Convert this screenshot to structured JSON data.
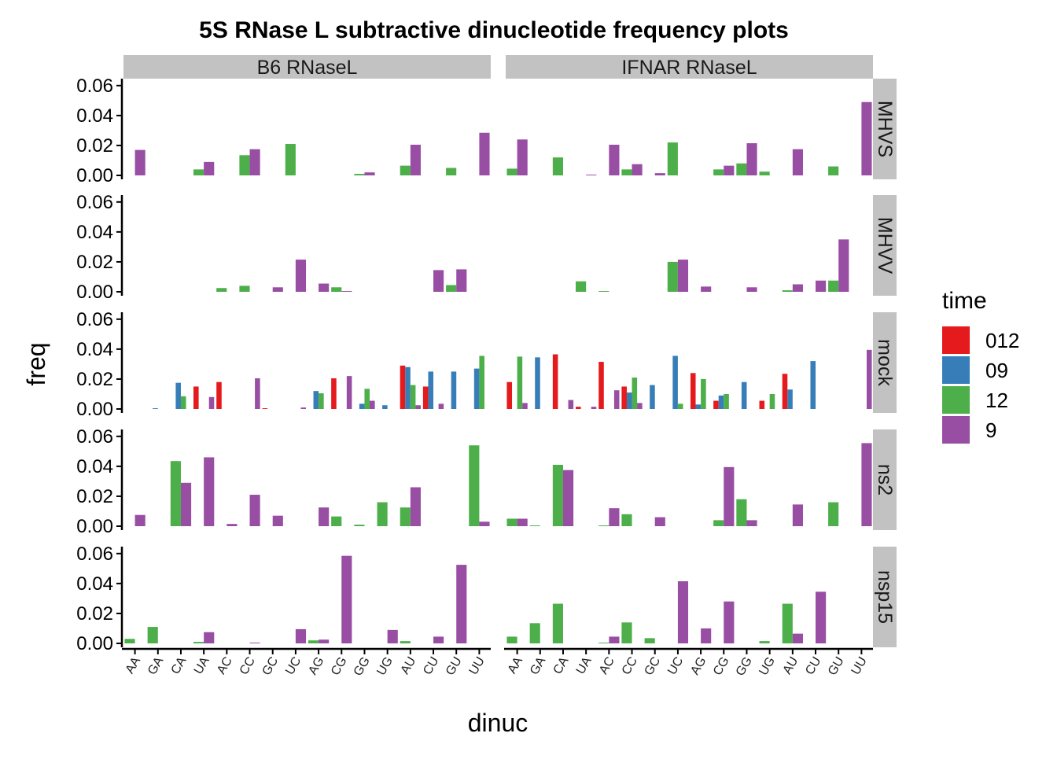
{
  "chart_data": {
    "type": "bar",
    "title": "5S RNase L subtractive dinucleotide frequency plots",
    "xlabel": "dinuc",
    "ylabel": "freq",
    "ylim": [
      0,
      0.062
    ],
    "yticks": [
      0.0,
      0.02,
      0.04,
      0.06
    ],
    "ytick_labels": [
      "0.00",
      "0.02",
      "0.04",
      "0.06"
    ],
    "grid": false,
    "legend_position": "right",
    "legend": {
      "title": "time",
      "entries": [
        {
          "name": "012",
          "color": "#E41A1C"
        },
        {
          "name": "09",
          "color": "#377EB8"
        },
        {
          "name": "12",
          "color": "#4DAF4A"
        },
        {
          "name": "9",
          "color": "#984EA3"
        }
      ]
    },
    "categories": [
      "AA",
      "GA",
      "CA",
      "UA",
      "AC",
      "CC",
      "GC",
      "UC",
      "AG",
      "CG",
      "GG",
      "UG",
      "AU",
      "CU",
      "GU",
      "UU"
    ],
    "columns": [
      "B6  RNaseL",
      "IFNAR  RNaseL"
    ],
    "rows": [
      "MHVS",
      "MHVV",
      "mock",
      "ns2",
      "nsp15"
    ],
    "panels": [
      {
        "column": "B6  RNaseL",
        "row": "MHVS",
        "series": [
          {
            "name": "12",
            "values": [
              0,
              0,
              0,
              0.004,
              0,
              0.0135,
              0,
              0.021,
              0,
              0,
              0.001,
              0,
              0.0065,
              0,
              0.005,
              0
            ]
          },
          {
            "name": "9",
            "values": [
              0.017,
              0,
              0,
              0.009,
              0,
              0.0175,
              0,
              0,
              0,
              0,
              0.002,
              0,
              0.0205,
              0,
              0,
              0.0285
            ]
          }
        ]
      },
      {
        "column": "IFNAR  RNaseL",
        "row": "MHVS",
        "series": [
          {
            "name": "12",
            "values": [
              0.0045,
              0,
              0.012,
              0,
              0,
              0.004,
              0,
              0.022,
              0,
              0.004,
              0.008,
              0.0025,
              0,
              0,
              0.006,
              0
            ]
          },
          {
            "name": "9",
            "values": [
              0.024,
              0,
              0,
              0.0005,
              0.0205,
              0.0075,
              0.0015,
              0,
              0,
              0.0065,
              0.0215,
              0,
              0.0175,
              0,
              0,
              0.049
            ]
          }
        ]
      },
      {
        "column": "B6  RNaseL",
        "row": "MHVV",
        "series": [
          {
            "name": "12",
            "values": [
              0,
              0,
              0,
              0,
              0.0025,
              0.004,
              0,
              0,
              0,
              0.003,
              0,
              0,
              0,
              0,
              0.0045,
              0
            ]
          },
          {
            "name": "9",
            "values": [
              0,
              0,
              0,
              0,
              0,
              0,
              0.003,
              0.0215,
              0.0055,
              0.0005,
              0,
              0,
              0,
              0.0145,
              0.015,
              0
            ]
          }
        ]
      },
      {
        "column": "IFNAR  RNaseL",
        "row": "MHVV",
        "series": [
          {
            "name": "12",
            "values": [
              0,
              0,
              0,
              0.007,
              0.0005,
              0,
              0,
              0.02,
              0,
              0,
              0,
              0,
              0.001,
              0,
              0.0075,
              0
            ]
          },
          {
            "name": "9",
            "values": [
              0,
              0,
              0,
              0,
              0,
              0,
              0,
              0.0215,
              0.0035,
              0,
              0.003,
              0,
              0.005,
              0.0075,
              0.035,
              0
            ]
          }
        ]
      },
      {
        "column": "B6  RNaseL",
        "row": "mock",
        "series": [
          {
            "name": "012",
            "values": [
              0,
              0,
              0,
              0.015,
              0.018,
              0,
              0.0005,
              0,
              0,
              0.0205,
              0,
              0,
              0.029,
              0.015,
              0,
              0
            ]
          },
          {
            "name": "09",
            "values": [
              0,
              0.0005,
              0.0175,
              0,
              0,
              0,
              0,
              0,
              0.012,
              0,
              0.0035,
              0.0025,
              0.028,
              0.025,
              0.025,
              0.027
            ]
          },
          {
            "name": "12",
            "values": [
              0,
              0,
              0.0085,
              0,
              0,
              0,
              0,
              0,
              0.0105,
              0,
              0.0135,
              0,
              0.016,
              0,
              0,
              0.0355
            ]
          },
          {
            "name": "9",
            "values": [
              0,
              0,
              0,
              0.008,
              0,
              0.0205,
              0,
              0.001,
              0,
              0.022,
              0.0055,
              0,
              0.0025,
              0.0035,
              0,
              0
            ]
          }
        ]
      },
      {
        "column": "IFNAR  RNaseL",
        "row": "mock",
        "series": [
          {
            "name": "012",
            "values": [
              0.018,
              0,
              0.0365,
              0.0015,
              0.0315,
              0.015,
              0,
              0,
              0.024,
              0.0055,
              0,
              0.0055,
              0.0235,
              0,
              0,
              0
            ]
          },
          {
            "name": "09",
            "values": [
              0,
              0.0345,
              0,
              0,
              0,
              0.011,
              0.016,
              0.0355,
              0.003,
              0.009,
              0.018,
              0,
              0.013,
              0.032,
              0,
              0
            ]
          },
          {
            "name": "12",
            "values": [
              0.035,
              0,
              0,
              0,
              0,
              0.021,
              0,
              0.0035,
              0.02,
              0.01,
              0,
              0.01,
              0,
              0,
              0,
              0
            ]
          },
          {
            "name": "9",
            "values": [
              0.004,
              0,
              0.006,
              0.0015,
              0.0125,
              0.004,
              0,
              0,
              0,
              0,
              0,
              0,
              0,
              0,
              0,
              0.0395
            ]
          }
        ]
      },
      {
        "column": "B6  RNaseL",
        "row": "ns2",
        "series": [
          {
            "name": "12",
            "values": [
              0,
              0,
              0.0435,
              0,
              0,
              0,
              0,
              0,
              0,
              0.0065,
              0.001,
              0.016,
              0.0125,
              0,
              0,
              0.054
            ]
          },
          {
            "name": "9",
            "values": [
              0.0075,
              0,
              0.029,
              0.046,
              0.0015,
              0.021,
              0.007,
              0,
              0.0125,
              0,
              0,
              0,
              0.026,
              0,
              0,
              0.003
            ]
          }
        ]
      },
      {
        "column": "IFNAR  RNaseL",
        "row": "ns2",
        "series": [
          {
            "name": "12",
            "values": [
              0.005,
              0.0005,
              0.041,
              0,
              0.0005,
              0.008,
              0,
              0,
              0,
              0.004,
              0.018,
              0,
              0,
              0,
              0.016,
              0
            ]
          },
          {
            "name": "9",
            "values": [
              0.005,
              0,
              0.0375,
              0,
              0.012,
              0,
              0.006,
              0,
              0,
              0.0395,
              0.004,
              0,
              0.0145,
              0,
              0,
              0.0555
            ]
          }
        ]
      },
      {
        "column": "B6  RNaseL",
        "row": "nsp15",
        "series": [
          {
            "name": "12",
            "values": [
              0.003,
              0.011,
              0,
              0.001,
              0,
              0,
              0,
              0,
              0.002,
              0,
              0,
              0,
              0.0015,
              0,
              0,
              0
            ]
          },
          {
            "name": "9",
            "values": [
              0,
              0,
              0,
              0.0075,
              0,
              0.0005,
              0,
              0.0095,
              0.0025,
              0.0585,
              0,
              0.009,
              0,
              0.0045,
              0.0525,
              0
            ]
          }
        ]
      },
      {
        "column": "IFNAR  RNaseL",
        "row": "nsp15",
        "series": [
          {
            "name": "12",
            "values": [
              0.0045,
              0.0135,
              0.0265,
              0,
              0.0005,
              0.014,
              0.0035,
              0,
              0,
              0,
              0,
              0.0015,
              0.0265,
              0,
              0,
              0
            ]
          },
          {
            "name": "9",
            "values": [
              0,
              0,
              0,
              0,
              0.0045,
              0,
              0,
              0.0415,
              0.01,
              0.028,
              0,
              0,
              0.0065,
              0.0345,
              0,
              0
            ]
          }
        ]
      }
    ]
  }
}
